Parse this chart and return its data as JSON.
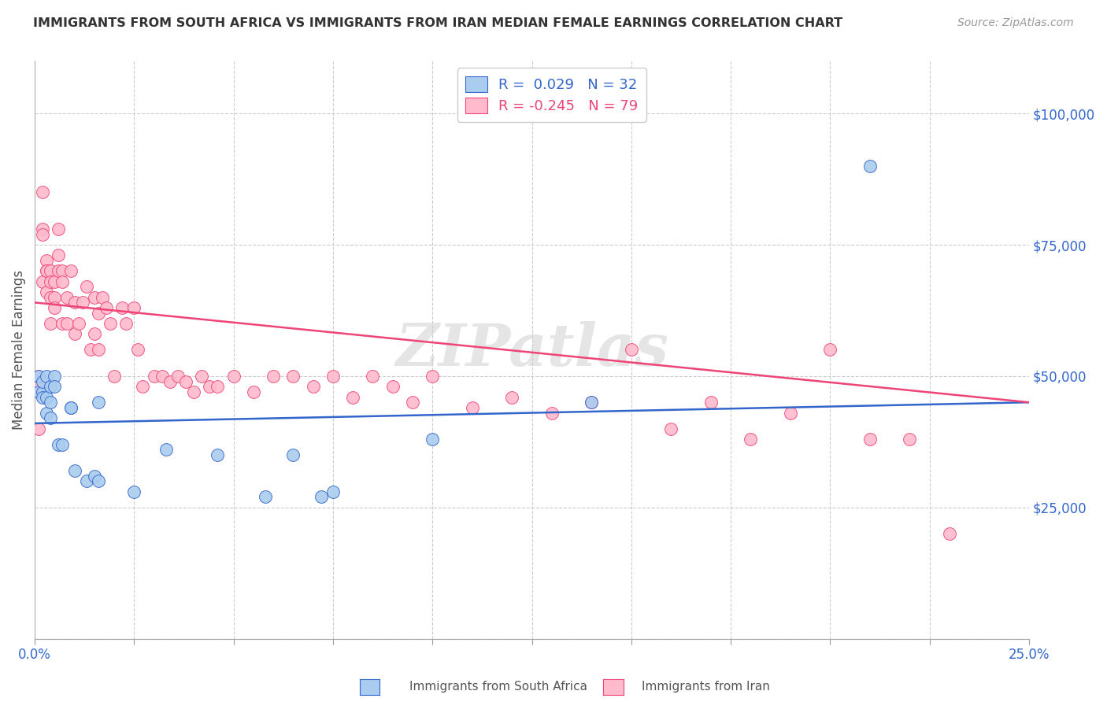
{
  "title": "IMMIGRANTS FROM SOUTH AFRICA VS IMMIGRANTS FROM IRAN MEDIAN FEMALE EARNINGS CORRELATION CHART",
  "source": "Source: ZipAtlas.com",
  "ylabel": "Median Female Earnings",
  "yticks": [
    0,
    25000,
    50000,
    75000,
    100000
  ],
  "ytick_labels": [
    "",
    "$25,000",
    "$50,000",
    "$75,000",
    "$100,000"
  ],
  "xmin": 0.0,
  "xmax": 0.25,
  "ymin": 0,
  "ymax": 110000,
  "blue_color": "#aaccee",
  "pink_color": "#ffbbcc",
  "blue_line_color": "#3366cc",
  "pink_line_color": "#ee4477",
  "blue_R": 0.029,
  "blue_N": 32,
  "pink_R": -0.245,
  "pink_N": 79,
  "watermark": "ZIPatlas",
  "legend_label_blue": "Immigrants from South Africa",
  "legend_label_pink": "Immigrants from Iran",
  "blue_trend_x0": 0.0,
  "blue_trend_y0": 41000,
  "blue_trend_x1": 0.25,
  "blue_trend_y1": 45000,
  "pink_trend_x0": 0.0,
  "pink_trend_y0": 64000,
  "pink_trend_x1": 0.25,
  "pink_trend_y1": 45000,
  "blue_x": [
    0.001,
    0.001,
    0.002,
    0.002,
    0.002,
    0.003,
    0.003,
    0.003,
    0.004,
    0.004,
    0.004,
    0.005,
    0.005,
    0.006,
    0.007,
    0.009,
    0.009,
    0.01,
    0.013,
    0.015,
    0.016,
    0.016,
    0.025,
    0.033,
    0.046,
    0.058,
    0.065,
    0.072,
    0.075,
    0.1,
    0.14,
    0.21
  ],
  "blue_y": [
    47000,
    50000,
    47000,
    46000,
    49000,
    50000,
    46000,
    43000,
    48000,
    45000,
    42000,
    50000,
    48000,
    37000,
    37000,
    44000,
    44000,
    32000,
    30000,
    31000,
    30000,
    45000,
    28000,
    36000,
    35000,
    27000,
    35000,
    27000,
    28000,
    38000,
    45000,
    90000
  ],
  "pink_x": [
    0.001,
    0.001,
    0.001,
    0.002,
    0.002,
    0.002,
    0.002,
    0.003,
    0.003,
    0.003,
    0.003,
    0.004,
    0.004,
    0.004,
    0.004,
    0.005,
    0.005,
    0.005,
    0.006,
    0.006,
    0.006,
    0.007,
    0.007,
    0.007,
    0.008,
    0.008,
    0.009,
    0.01,
    0.01,
    0.011,
    0.012,
    0.013,
    0.014,
    0.015,
    0.015,
    0.016,
    0.016,
    0.017,
    0.018,
    0.019,
    0.02,
    0.022,
    0.023,
    0.025,
    0.026,
    0.027,
    0.03,
    0.032,
    0.034,
    0.036,
    0.038,
    0.04,
    0.042,
    0.044,
    0.046,
    0.05,
    0.055,
    0.06,
    0.065,
    0.07,
    0.075,
    0.08,
    0.085,
    0.09,
    0.095,
    0.1,
    0.11,
    0.12,
    0.13,
    0.14,
    0.15,
    0.16,
    0.17,
    0.18,
    0.19,
    0.2,
    0.21,
    0.22,
    0.23
  ],
  "pink_y": [
    50000,
    48000,
    40000,
    85000,
    78000,
    77000,
    68000,
    72000,
    70000,
    70000,
    66000,
    70000,
    68000,
    65000,
    60000,
    68000,
    65000,
    63000,
    78000,
    73000,
    70000,
    70000,
    68000,
    60000,
    65000,
    60000,
    70000,
    64000,
    58000,
    60000,
    64000,
    67000,
    55000,
    65000,
    58000,
    62000,
    55000,
    65000,
    63000,
    60000,
    50000,
    63000,
    60000,
    63000,
    55000,
    48000,
    50000,
    50000,
    49000,
    50000,
    49000,
    47000,
    50000,
    48000,
    48000,
    50000,
    47000,
    50000,
    50000,
    48000,
    50000,
    46000,
    50000,
    48000,
    45000,
    50000,
    44000,
    46000,
    43000,
    45000,
    55000,
    40000,
    45000,
    38000,
    43000,
    55000,
    38000,
    38000,
    20000
  ]
}
